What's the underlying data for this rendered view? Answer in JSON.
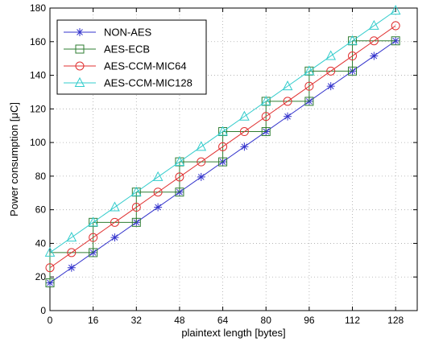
{
  "chart_data": {
    "type": "line",
    "xlabel": "plaintext length [bytes]",
    "ylabel": "Power consumption [μC]",
    "xlim": [
      0,
      136
    ],
    "ylim": [
      0,
      180
    ],
    "xticks": [
      0,
      16,
      32,
      48,
      64,
      80,
      96,
      112,
      128
    ],
    "yticks": [
      0,
      20,
      40,
      60,
      80,
      100,
      120,
      140,
      160,
      180
    ],
    "grid": true,
    "legend_position": "top-left",
    "series": [
      {
        "name": "NON-AES",
        "color": "#3333cc",
        "marker": "star",
        "x": [
          0,
          8,
          16,
          24,
          32,
          40,
          48,
          56,
          64,
          72,
          80,
          88,
          96,
          104,
          112,
          120,
          128
        ],
        "y": [
          16.5,
          25.5,
          34.5,
          43.5,
          52.5,
          61.5,
          70.5,
          79.5,
          88.5,
          97.5,
          106.5,
          115.5,
          124.5,
          133.5,
          142.5,
          151.5,
          160.5
        ]
      },
      {
        "name": "AES-ECB",
        "color": "#2e7d32",
        "marker": "square",
        "x": [
          0,
          16,
          16,
          32,
          32,
          48,
          48,
          64,
          64,
          80,
          80,
          96,
          96,
          112,
          112,
          128
        ],
        "y": [
          16.5,
          34.5,
          52.5,
          52.5,
          70.5,
          70.5,
          88.5,
          88.5,
          106.5,
          106.5,
          124.5,
          124.5,
          142.5,
          142.5,
          160.5,
          160.5
        ],
        "x_plot": [
          0,
          0,
          16,
          16,
          32,
          32,
          48,
          48,
          64,
          64,
          80,
          80,
          96,
          96,
          112,
          112,
          128,
          128
        ],
        "y_plot": [
          16.5,
          34.5,
          34.5,
          52.5,
          52.5,
          70.5,
          70.5,
          88.5,
          88.5,
          106.5,
          106.5,
          124.5,
          124.5,
          142.5,
          142.5,
          160.5,
          160.5,
          160.5
        ]
      },
      {
        "name": "AES-CCM-MIC64",
        "color": "#e03030",
        "marker": "circle",
        "x": [
          0,
          8,
          16,
          24,
          32,
          40,
          48,
          56,
          64,
          72,
          80,
          88,
          96,
          104,
          112,
          120,
          128
        ],
        "y": [
          25.5,
          34.5,
          43.5,
          52.5,
          61.5,
          70.5,
          79.5,
          88.5,
          97.5,
          106.5,
          115.5,
          124.5,
          133.5,
          142.5,
          151.5,
          160.5,
          169.5
        ]
      },
      {
        "name": "AES-CCM-MIC128",
        "color": "#33cccc",
        "marker": "triangle",
        "x": [
          0,
          8,
          16,
          24,
          32,
          40,
          48,
          56,
          64,
          72,
          80,
          88,
          96,
          104,
          112,
          120,
          128
        ],
        "y": [
          34.5,
          43.5,
          52.5,
          61.5,
          70.5,
          79.5,
          88.5,
          97.5,
          106.5,
          115.5,
          124.5,
          133.5,
          142.5,
          151.5,
          160.5,
          169.5,
          178.5
        ]
      }
    ]
  }
}
